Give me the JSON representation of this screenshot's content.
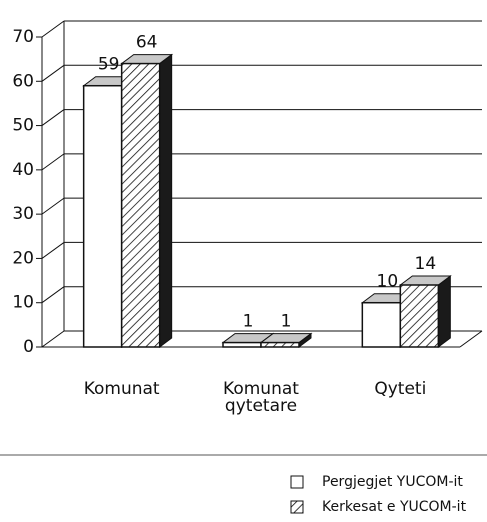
{
  "chart_data": {
    "type": "bar3d",
    "categories": [
      "Komunat",
      "Komunat qytetare",
      "Qyteti"
    ],
    "series": [
      {
        "name": "Pergjegjet YUCOM-it",
        "color": "#ffffff",
        "values": [
          59,
          1,
          10
        ]
      },
      {
        "name": "Kerkesat e YUCOM-it",
        "color": "hatch",
        "values": [
          64,
          1,
          14
        ]
      }
    ],
    "ylim": [
      0,
      70
    ],
    "yticks": [
      0,
      10,
      20,
      30,
      40,
      50,
      60,
      70
    ],
    "grid": true,
    "legend": "bottom-right"
  }
}
